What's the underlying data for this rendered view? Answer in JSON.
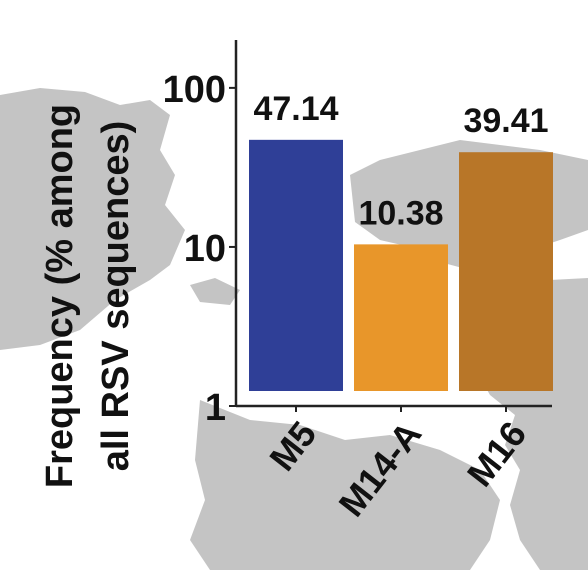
{
  "chart_data": {
    "type": "bar",
    "ylabel_line1": "Frequency (% among",
    "ylabel_line2": "all RSV sequences)",
    "categories": [
      "M5",
      "M14-A",
      "M16"
    ],
    "values": [
      47.14,
      10.38,
      39.41
    ],
    "value_labels": [
      "47.14",
      "10.38",
      "39.41"
    ],
    "colors": [
      "#2f3f97",
      "#e8962a",
      "#b87628"
    ],
    "y_scale": "log",
    "ylim": [
      1,
      200
    ],
    "yticks": [
      1,
      10,
      100
    ],
    "ytick_labels": [
      "1",
      "10",
      "100"
    ],
    "grid": false,
    "legend": "none"
  },
  "style": {
    "map_color": "#c4c4c4",
    "text_color": "#111111",
    "axis_color": "#222222"
  }
}
